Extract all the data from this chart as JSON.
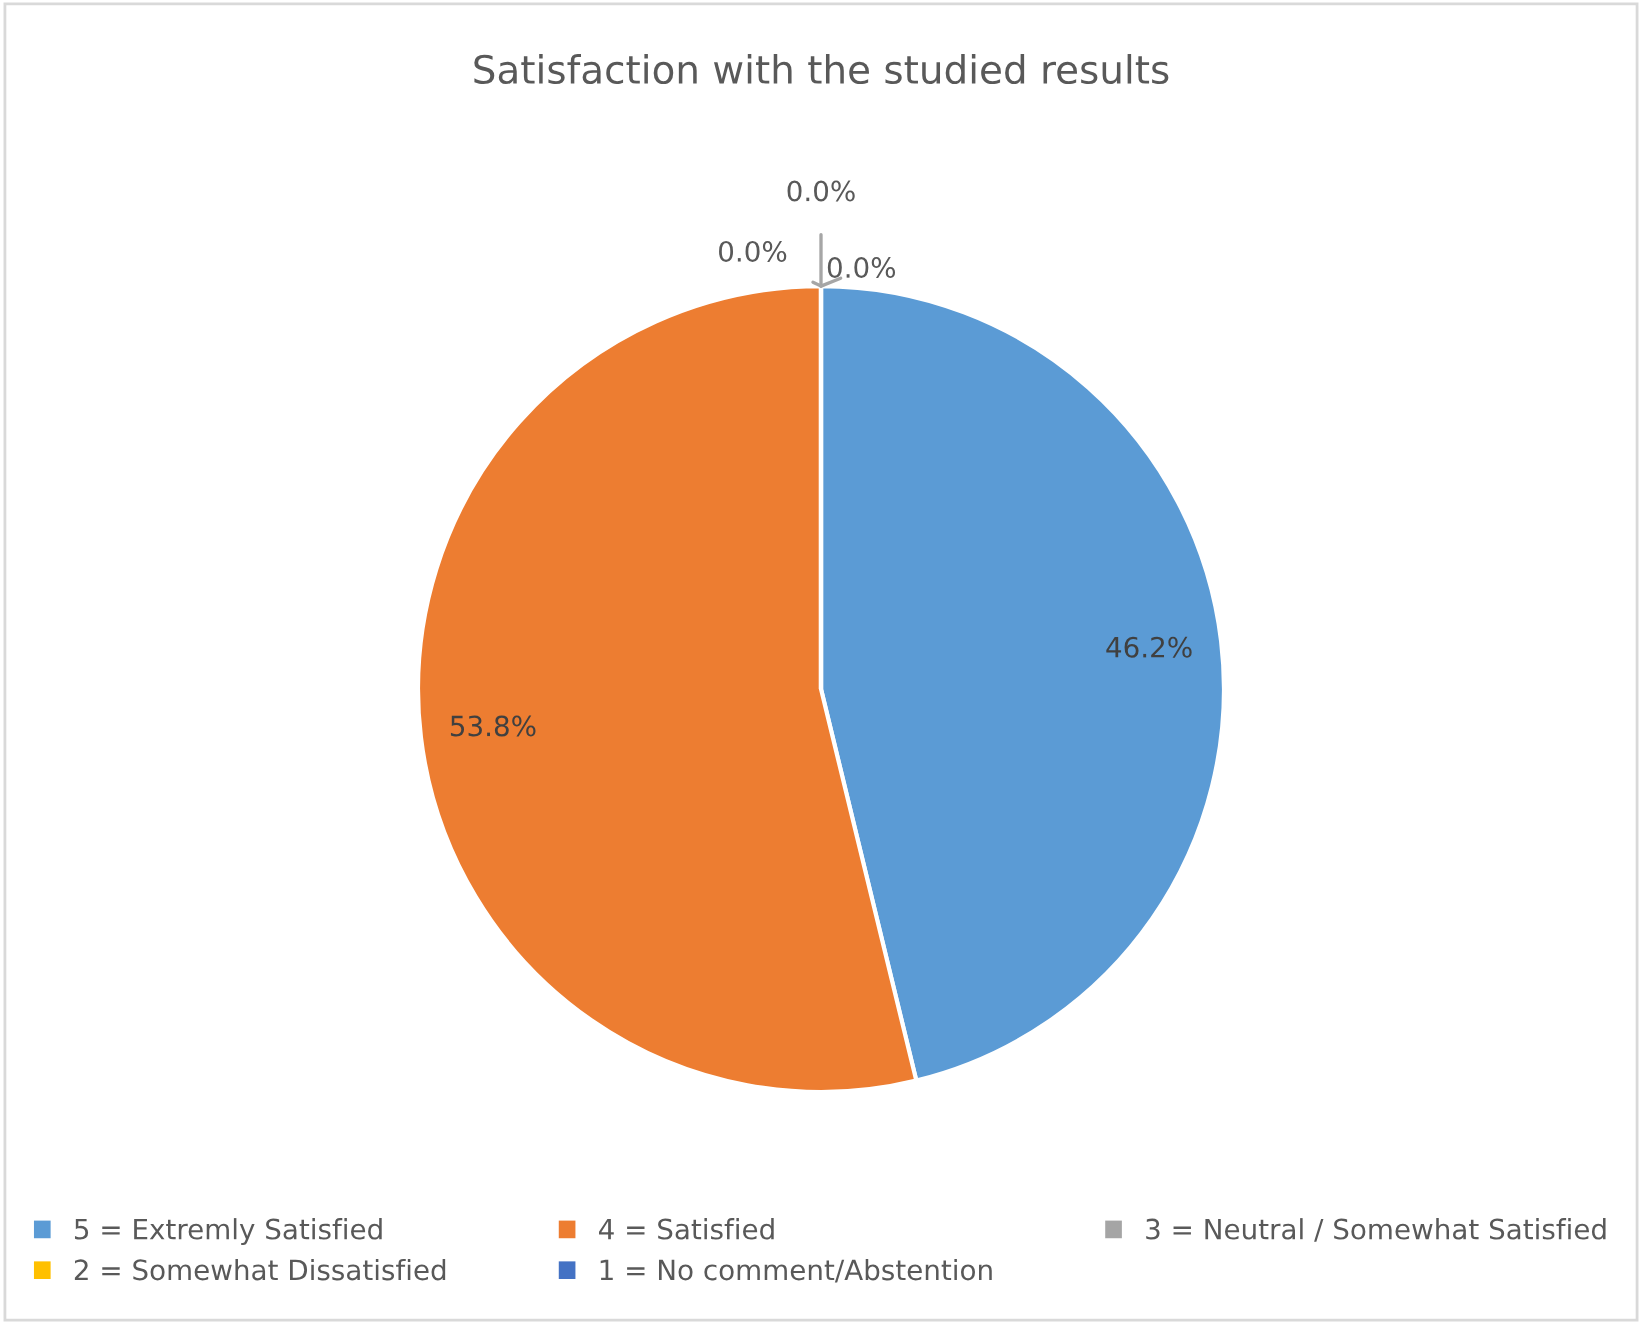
{
  "chart_data": {
    "type": "pie",
    "title": "Satisfaction with the studied results",
    "categories": [
      "5 = Extremly Satisfied",
      "4 = Satisfied",
      "3 = Neutral / Somewhat Satisfied",
      "2 = Somewhat Dissatisfied",
      "1 = No comment/Abstention"
    ],
    "values": [
      46.2,
      53.8,
      0,
      0,
      0
    ],
    "colors": [
      "#5b9bd5",
      "#ed7d31",
      "#a5a5a5",
      "#ffc000",
      "#4472c4"
    ],
    "value_labels": [
      "46.2%",
      "53.8%",
      "0.0%",
      "0.0%",
      "0.0%"
    ],
    "legend": "bottom"
  }
}
